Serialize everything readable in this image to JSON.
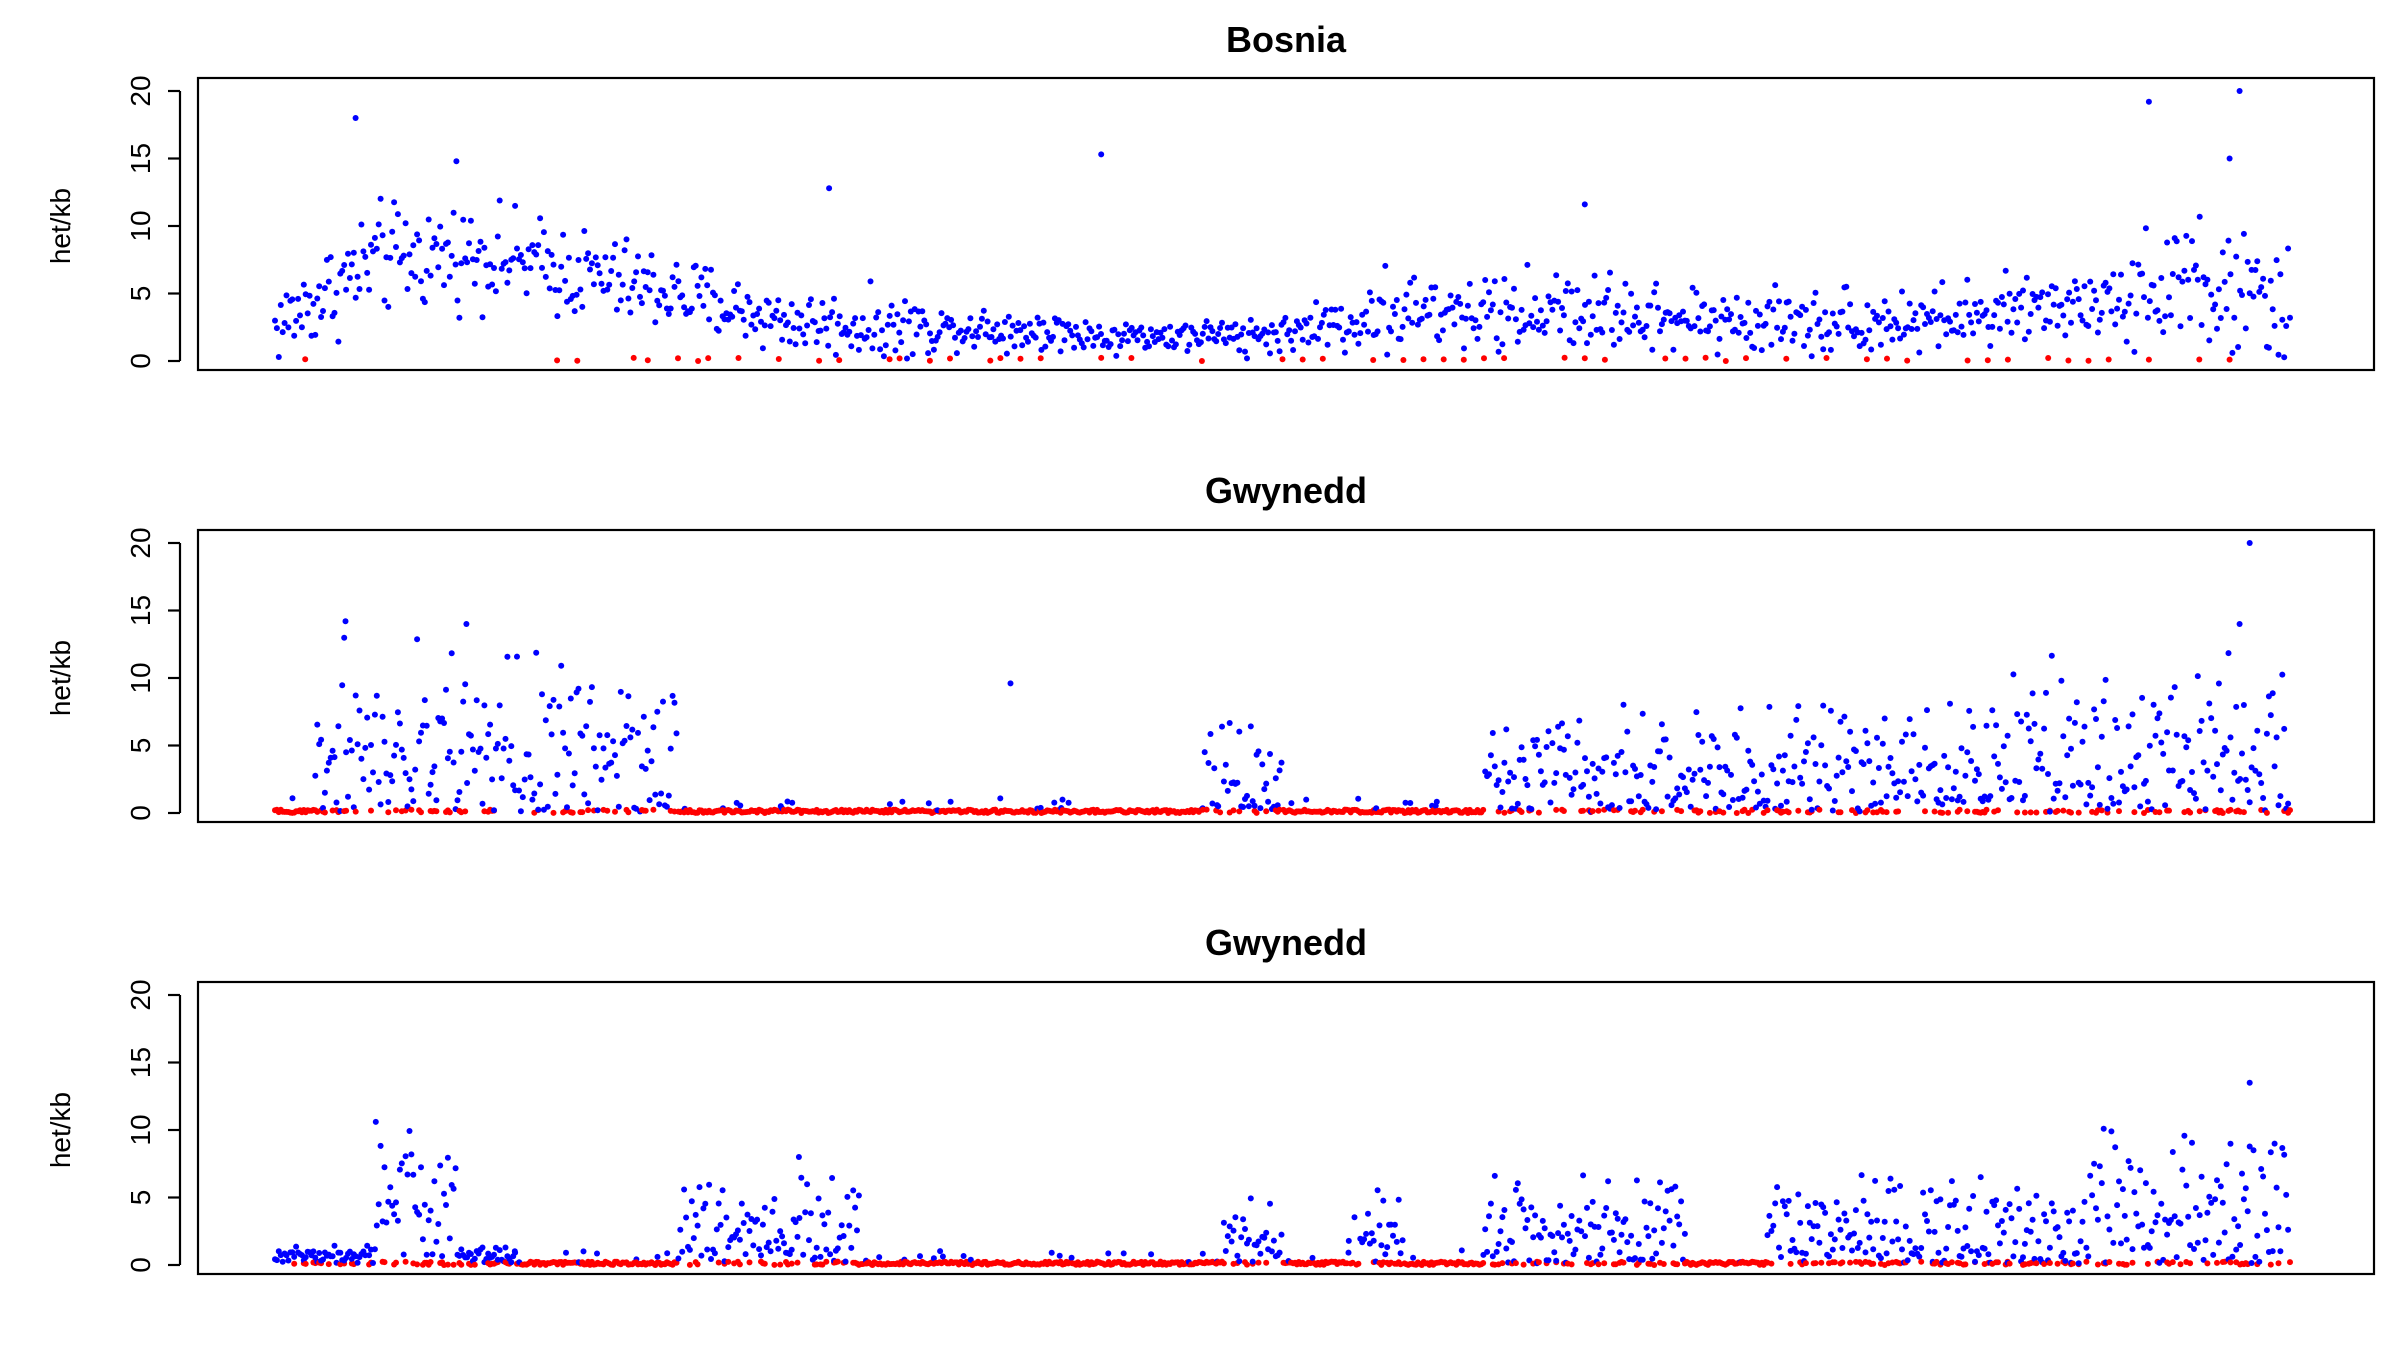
{
  "chart_data": [
    {
      "type": "scatter",
      "title": "Bosnia",
      "ylabel": "het/kb",
      "xlabel": "",
      "ylim": [
        0,
        20
      ],
      "yticks": [
        0,
        5,
        10,
        15,
        20
      ],
      "x_axis_shown": false,
      "colors": {
        "het_windows": "#0000ff",
        "low_het_windows": "#ff0000"
      },
      "profile": {
        "x": [
          0,
          0.05,
          0.1,
          0.15,
          0.2,
          0.25,
          0.3,
          0.35,
          0.4,
          0.45,
          0.5,
          0.55,
          0.6,
          0.65,
          0.7,
          0.75,
          0.8,
          0.85,
          0.9,
          0.95,
          1.0
        ],
        "mean_het_per_kb": [
          2.5,
          7.5,
          8.0,
          6.5,
          5.0,
          3.0,
          2.5,
          2.5,
          2.0,
          1.8,
          2.0,
          3.5,
          3.5,
          3.8,
          3.0,
          3.0,
          3.0,
          3.2,
          4.5,
          6.0,
          3.5
        ],
        "spread": [
          2.5,
          3.5,
          3.0,
          3.0,
          2.5,
          2.0,
          2.0,
          1.5,
          1.2,
          1.0,
          1.2,
          2.5,
          2.5,
          2.5,
          2.2,
          2.2,
          2.0,
          2.2,
          2.5,
          4.5,
          4.0
        ]
      },
      "red_points_x": [
        0.015,
        0.14,
        0.15,
        0.178,
        0.185,
        0.2,
        0.21,
        0.215,
        0.23,
        0.25,
        0.27,
        0.28,
        0.305,
        0.31,
        0.325,
        0.335,
        0.355,
        0.36,
        0.37,
        0.38,
        0.41,
        0.425,
        0.46,
        0.5,
        0.51,
        0.52,
        0.545,
        0.56,
        0.57,
        0.58,
        0.59,
        0.6,
        0.61,
        0.64,
        0.65,
        0.66,
        0.69,
        0.7,
        0.71,
        0.72,
        0.73,
        0.75,
        0.77,
        0.79,
        0.8,
        0.81,
        0.84,
        0.85,
        0.86,
        0.88,
        0.89,
        0.9,
        0.91,
        0.93,
        0.955,
        0.97
      ],
      "n_points": 1050,
      "blue_peaks": [
        [
          0.04,
          18
        ],
        [
          0.09,
          14.8
        ],
        [
          0.275,
          12.8
        ],
        [
          0.41,
          15.3
        ],
        [
          0.65,
          11.6
        ],
        [
          0.93,
          19.2
        ],
        [
          0.975,
          20
        ],
        [
          0.97,
          15
        ]
      ]
    },
    {
      "type": "scatter",
      "title": "Gwynedd",
      "ylabel": "het/kb",
      "xlabel": "",
      "ylim": [
        0,
        20
      ],
      "yticks": [
        0,
        5,
        10,
        15,
        20
      ],
      "x_axis_shown": false,
      "colors": {
        "het_windows": "#0000ff",
        "low_het_windows": "#ff0000"
      },
      "segments": [
        {
          "from": 0.0,
          "to": 0.02,
          "state": "low"
        },
        {
          "from": 0.02,
          "to": 0.2,
          "state": "high",
          "mean": 4.5,
          "spread": 4.0
        },
        {
          "from": 0.2,
          "to": 0.215,
          "state": "low"
        },
        {
          "from": 0.215,
          "to": 0.46,
          "state": "low"
        },
        {
          "from": 0.46,
          "to": 0.47,
          "state": "low"
        },
        {
          "from": 0.46,
          "to": 0.5,
          "state": "mid",
          "mean": 2.5,
          "spread": 2.5
        },
        {
          "from": 0.5,
          "to": 0.6,
          "state": "low"
        },
        {
          "from": 0.6,
          "to": 0.96,
          "state": "high",
          "mean": 3.0,
          "spread": 3.0
        },
        {
          "from": 0.86,
          "to": 1.0,
          "state": "high",
          "mean": 4.5,
          "spread": 4.5
        }
      ],
      "n_points": 1050,
      "blue_peaks": [
        [
          0.035,
          14.2
        ],
        [
          0.095,
          14
        ],
        [
          0.365,
          9.6
        ],
        [
          0.98,
          20.5
        ],
        [
          0.975,
          14
        ]
      ]
    },
    {
      "type": "scatter",
      "title": "Gwynedd",
      "ylabel": "het/kb",
      "xlabel": "",
      "ylim": [
        0,
        20
      ],
      "yticks": [
        0,
        5,
        10,
        15,
        20
      ],
      "x_axis_shown": false,
      "colors": {
        "het_windows": "#0000ff",
        "low_het_windows": "#ff0000"
      },
      "segments": [
        {
          "from": 0.0,
          "to": 0.05,
          "state": "low-mid",
          "mean": 0.5,
          "spread": 0.6
        },
        {
          "from": 0.05,
          "to": 0.09,
          "state": "high",
          "mean": 4.0,
          "spread": 3.0
        },
        {
          "from": 0.09,
          "to": 0.12,
          "state": "low-mid",
          "mean": 0.5,
          "spread": 0.5
        },
        {
          "from": 0.12,
          "to": 0.2,
          "state": "low"
        },
        {
          "from": 0.2,
          "to": 0.29,
          "state": "high",
          "mean": 2.5,
          "spread": 2.5
        },
        {
          "from": 0.29,
          "to": 0.47,
          "state": "low"
        },
        {
          "from": 0.47,
          "to": 0.5,
          "state": "mid",
          "mean": 2.0,
          "spread": 2.0
        },
        {
          "from": 0.5,
          "to": 0.54,
          "state": "low"
        },
        {
          "from": 0.53,
          "to": 0.56,
          "state": "mid",
          "mean": 2.5,
          "spread": 2.5
        },
        {
          "from": 0.56,
          "to": 0.6,
          "state": "low"
        },
        {
          "from": 0.6,
          "to": 0.7,
          "state": "high",
          "mean": 2.5,
          "spread": 2.5
        },
        {
          "from": 0.7,
          "to": 0.74,
          "state": "low"
        },
        {
          "from": 0.74,
          "to": 0.9,
          "state": "high",
          "mean": 2.0,
          "spread": 2.5
        },
        {
          "from": 0.9,
          "to": 1.0,
          "state": "high",
          "mean": 4.0,
          "spread": 4.0
        }
      ],
      "n_points": 1050,
      "blue_peaks": [
        [
          0.05,
          10.6
        ],
        [
          0.26,
          8.0
        ],
        [
          0.98,
          13.5
        ]
      ]
    }
  ]
}
